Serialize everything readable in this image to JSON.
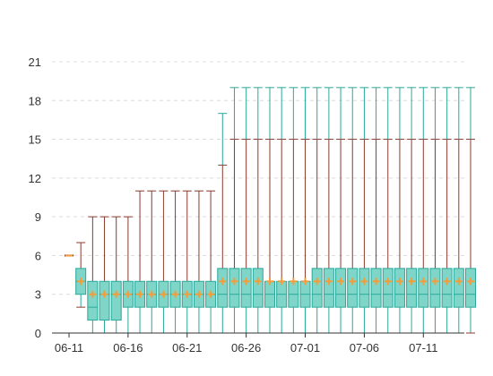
{
  "chart_data": {
    "type": "boxplot",
    "title": "",
    "xlabel": "",
    "ylabel": "",
    "ylim": [
      0,
      21
    ],
    "grid": true,
    "y_ticks": [
      0,
      3,
      6,
      9,
      12,
      15,
      18,
      21
    ],
    "x_tick_labels": [
      "06-11",
      "06-16",
      "06-21",
      "06-26",
      "07-01",
      "07-06",
      "07-11"
    ],
    "x_tick_indices": [
      0,
      5,
      10,
      15,
      20,
      25,
      30
    ],
    "categories": [
      "06-11",
      "06-12",
      "06-13",
      "06-14",
      "06-15",
      "06-16",
      "06-17",
      "06-18",
      "06-19",
      "06-20",
      "06-21",
      "06-22",
      "06-23",
      "06-24",
      "06-25",
      "06-26",
      "06-27",
      "06-28",
      "06-29",
      "06-30",
      "07-01",
      "07-02",
      "07-03",
      "07-04",
      "07-05",
      "07-06",
      "07-07",
      "07-08",
      "07-09",
      "07-10",
      "07-11",
      "07-12",
      "07-13",
      "07-14",
      "07-15"
    ],
    "colors": {
      "box_fill": "#7fd6c8",
      "box_stroke": "#2aa899",
      "upper_whisker": "#8b3a2e",
      "lower_whisker": "#2aa899",
      "mean_marker": "#f39c39",
      "axis": "#333333"
    },
    "boxes": [
      {
        "date": "06-11",
        "min": 6,
        "q1": 6,
        "median": 6,
        "q3": 6,
        "max": 6,
        "mean": 6,
        "upper_outer": null
      },
      {
        "date": "06-12",
        "min": 2,
        "q1": 3,
        "median": 4,
        "q3": 5,
        "max": 7,
        "mean": 4,
        "upper_outer": null
      },
      {
        "date": "06-13",
        "min": 0,
        "q1": 1,
        "median": 2,
        "q3": 4,
        "max": 9,
        "mean": 3,
        "upper_outer": null
      },
      {
        "date": "06-14",
        "min": 0,
        "q1": 1,
        "median": 3,
        "q3": 4,
        "max": 9,
        "mean": 3,
        "upper_outer": null
      },
      {
        "date": "06-15",
        "min": 0,
        "q1": 1,
        "median": 3,
        "q3": 4,
        "max": 9,
        "mean": 3,
        "upper_outer": null
      },
      {
        "date": "06-16",
        "min": 0,
        "q1": 2,
        "median": 3,
        "q3": 4,
        "max": 9,
        "mean": 3,
        "upper_outer": null
      },
      {
        "date": "06-17",
        "min": 0,
        "q1": 2,
        "median": 3,
        "q3": 4,
        "max": 11,
        "mean": 3,
        "upper_outer": null
      },
      {
        "date": "06-18",
        "min": 0,
        "q1": 2,
        "median": 3,
        "q3": 4,
        "max": 11,
        "mean": 3,
        "upper_outer": null
      },
      {
        "date": "06-19",
        "min": 0,
        "q1": 2,
        "median": 3,
        "q3": 4,
        "max": 11,
        "mean": 3,
        "upper_outer": null
      },
      {
        "date": "06-20",
        "min": 0,
        "q1": 2,
        "median": 3,
        "q3": 4,
        "max": 11,
        "mean": 3,
        "upper_outer": null
      },
      {
        "date": "06-21",
        "min": 0,
        "q1": 2,
        "median": 3,
        "q3": 4,
        "max": 11,
        "mean": 3,
        "upper_outer": null
      },
      {
        "date": "06-22",
        "min": 0,
        "q1": 2,
        "median": 3,
        "q3": 4,
        "max": 11,
        "mean": 3,
        "upper_outer": null
      },
      {
        "date": "06-23",
        "min": 0,
        "q1": 2,
        "median": 3,
        "q3": 4,
        "max": 11,
        "mean": 3,
        "upper_outer": null
      },
      {
        "date": "06-24",
        "min": 0,
        "q1": 2,
        "median": 3,
        "q3": 5,
        "max": 13,
        "mean": 4,
        "upper_outer": 17
      },
      {
        "date": "06-25",
        "min": 0,
        "q1": 2,
        "median": 3,
        "q3": 5,
        "max": 15,
        "mean": 4,
        "upper_outer": 19
      },
      {
        "date": "06-26",
        "min": 0,
        "q1": 2,
        "median": 3,
        "q3": 5,
        "max": 15,
        "mean": 4,
        "upper_outer": 19
      },
      {
        "date": "06-27",
        "min": 0,
        "q1": 2,
        "median": 3,
        "q3": 5,
        "max": 15,
        "mean": 4,
        "upper_outer": 19
      },
      {
        "date": "06-28",
        "min": 0,
        "q1": 2,
        "median": 3,
        "q3": 4,
        "max": 15,
        "mean": 4,
        "upper_outer": 19
      },
      {
        "date": "06-29",
        "min": 0,
        "q1": 2,
        "median": 3,
        "q3": 4,
        "max": 15,
        "mean": 4,
        "upper_outer": 19
      },
      {
        "date": "06-30",
        "min": 0,
        "q1": 2,
        "median": 3,
        "q3": 4,
        "max": 15,
        "mean": 4,
        "upper_outer": 19
      },
      {
        "date": "07-01",
        "min": 0,
        "q1": 2,
        "median": 3,
        "q3": 4,
        "max": 15,
        "mean": 4,
        "upper_outer": 19
      },
      {
        "date": "07-02",
        "min": 0,
        "q1": 2,
        "median": 3,
        "q3": 5,
        "max": 15,
        "mean": 4,
        "upper_outer": 19
      },
      {
        "date": "07-03",
        "min": 0,
        "q1": 2,
        "median": 3,
        "q3": 5,
        "max": 15,
        "mean": 4,
        "upper_outer": 19
      },
      {
        "date": "07-04",
        "min": 0,
        "q1": 2,
        "median": 3,
        "q3": 5,
        "max": 15,
        "mean": 4,
        "upper_outer": 19
      },
      {
        "date": "07-05",
        "min": 0,
        "q1": 2,
        "median": 3,
        "q3": 5,
        "max": 15,
        "mean": 4,
        "upper_outer": 19
      },
      {
        "date": "07-06",
        "min": 0,
        "q1": 2,
        "median": 3,
        "q3": 5,
        "max": 15,
        "mean": 4,
        "upper_outer": 19
      },
      {
        "date": "07-07",
        "min": 0,
        "q1": 2,
        "median": 3,
        "q3": 5,
        "max": 15,
        "mean": 4,
        "upper_outer": 19
      },
      {
        "date": "07-08",
        "min": 0,
        "q1": 2,
        "median": 3,
        "q3": 5,
        "max": 15,
        "mean": 4,
        "upper_outer": 19
      },
      {
        "date": "07-09",
        "min": 0,
        "q1": 2,
        "median": 3,
        "q3": 5,
        "max": 15,
        "mean": 4,
        "upper_outer": 19
      },
      {
        "date": "07-10",
        "min": 0,
        "q1": 2,
        "median": 3,
        "q3": 5,
        "max": 15,
        "mean": 4,
        "upper_outer": 19
      },
      {
        "date": "07-11",
        "min": 0,
        "q1": 2,
        "median": 3,
        "q3": 5,
        "max": 15,
        "mean": 4,
        "upper_outer": 19
      },
      {
        "date": "07-12",
        "min": 0,
        "q1": 2,
        "median": 3,
        "q3": 5,
        "max": 15,
        "mean": 4,
        "upper_outer": 19
      },
      {
        "date": "07-13",
        "min": 0,
        "q1": 2,
        "median": 3,
        "q3": 5,
        "max": 15,
        "mean": 4,
        "upper_outer": 19
      },
      {
        "date": "07-14",
        "min": 0,
        "q1": 2,
        "median": 3,
        "q3": 5,
        "max": 15,
        "mean": 4,
        "upper_outer": 19
      },
      {
        "date": "07-15",
        "min": 0,
        "q1": 2,
        "median": 3,
        "q3": 5,
        "max": 15,
        "mean": 4,
        "upper_outer": 19
      }
    ]
  }
}
